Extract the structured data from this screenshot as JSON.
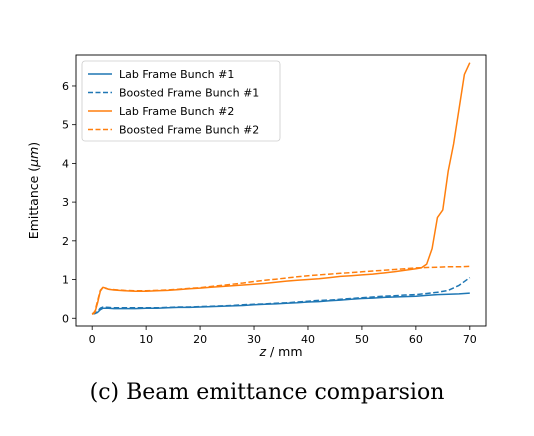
{
  "caption": "(c) Beam emittance comparsion",
  "chart_data": {
    "type": "line",
    "title": "",
    "xlabel_italic": "z",
    "xlabel_rest": " / mm",
    "ylabel_pre": "Emittance (",
    "ylabel_italic": "μm",
    "ylabel_post": ")",
    "xlim": [
      -3,
      73
    ],
    "ylim": [
      -0.2,
      6.8
    ],
    "xticks": [
      0,
      10,
      20,
      30,
      40,
      50,
      60,
      70
    ],
    "yticks": [
      0,
      1,
      2,
      3,
      4,
      5,
      6
    ],
    "legend_position": "top-left",
    "series": [
      {
        "name": "Lab Frame Bunch #1",
        "color": "#1f77b4",
        "style": "solid",
        "x": [
          0,
          0.5,
          1,
          1.5,
          2,
          3,
          4,
          6,
          8,
          10,
          12,
          14,
          16,
          18,
          20,
          22,
          24,
          26,
          28,
          30,
          32,
          34,
          36,
          38,
          40,
          42,
          44,
          46,
          48,
          50,
          52,
          54,
          56,
          58,
          60,
          62,
          64,
          66,
          68,
          70
        ],
        "y": [
          0.12,
          0.12,
          0.15,
          0.22,
          0.26,
          0.26,
          0.25,
          0.25,
          0.25,
          0.26,
          0.26,
          0.27,
          0.28,
          0.28,
          0.29,
          0.3,
          0.31,
          0.32,
          0.33,
          0.35,
          0.36,
          0.37,
          0.39,
          0.4,
          0.42,
          0.43,
          0.45,
          0.47,
          0.49,
          0.51,
          0.52,
          0.54,
          0.55,
          0.56,
          0.57,
          0.59,
          0.61,
          0.62,
          0.63,
          0.65
        ]
      },
      {
        "name": "Boosted Frame Bunch #1",
        "color": "#1f77b4",
        "style": "dashed",
        "x": [
          0,
          0.5,
          1,
          1.5,
          2,
          3,
          4,
          6,
          8,
          10,
          12,
          14,
          16,
          18,
          20,
          22,
          24,
          26,
          28,
          30,
          32,
          34,
          36,
          38,
          40,
          42,
          44,
          46,
          48,
          50,
          52,
          54,
          56,
          58,
          60,
          62,
          64,
          66,
          68,
          70
        ],
        "y": [
          0.12,
          0.12,
          0.18,
          0.26,
          0.29,
          0.28,
          0.27,
          0.27,
          0.27,
          0.27,
          0.27,
          0.28,
          0.29,
          0.29,
          0.3,
          0.31,
          0.32,
          0.33,
          0.35,
          0.36,
          0.37,
          0.39,
          0.4,
          0.42,
          0.44,
          0.46,
          0.47,
          0.49,
          0.51,
          0.53,
          0.55,
          0.57,
          0.58,
          0.6,
          0.61,
          0.64,
          0.67,
          0.72,
          0.85,
          1.05
        ]
      },
      {
        "name": "Lab Frame Bunch #2",
        "color": "#ff7f0e",
        "style": "solid",
        "x": [
          0,
          0.5,
          1,
          1.5,
          2,
          2.5,
          3,
          4,
          5,
          6,
          8,
          10,
          12,
          14,
          16,
          18,
          20,
          22,
          24,
          26,
          28,
          30,
          32,
          34,
          36,
          38,
          40,
          42,
          44,
          46,
          48,
          50,
          52,
          54,
          56,
          58,
          60,
          61,
          62,
          63,
          64,
          65,
          66,
          67,
          68,
          69,
          70
        ],
        "y": [
          0.1,
          0.15,
          0.4,
          0.7,
          0.8,
          0.78,
          0.75,
          0.73,
          0.72,
          0.71,
          0.7,
          0.7,
          0.71,
          0.72,
          0.74,
          0.76,
          0.78,
          0.8,
          0.82,
          0.84,
          0.86,
          0.88,
          0.9,
          0.93,
          0.96,
          0.98,
          1.0,
          1.02,
          1.05,
          1.08,
          1.1,
          1.12,
          1.14,
          1.17,
          1.2,
          1.24,
          1.28,
          1.3,
          1.4,
          1.8,
          2.6,
          2.8,
          3.8,
          4.5,
          5.4,
          6.3,
          6.6
        ]
      },
      {
        "name": "Boosted Frame Bunch #2",
        "color": "#ff7f0e",
        "style": "dashed",
        "x": [
          0,
          0.5,
          1,
          1.5,
          2,
          2.5,
          3,
          4,
          5,
          6,
          8,
          10,
          12,
          14,
          16,
          18,
          20,
          22,
          24,
          26,
          28,
          30,
          32,
          34,
          36,
          38,
          40,
          42,
          44,
          46,
          48,
          50,
          52,
          54,
          56,
          58,
          60,
          62,
          64,
          66,
          68,
          70
        ],
        "y": [
          0.1,
          0.18,
          0.45,
          0.72,
          0.8,
          0.77,
          0.75,
          0.74,
          0.73,
          0.72,
          0.71,
          0.71,
          0.72,
          0.73,
          0.75,
          0.77,
          0.79,
          0.82,
          0.85,
          0.88,
          0.91,
          0.95,
          0.98,
          1.01,
          1.04,
          1.07,
          1.1,
          1.12,
          1.14,
          1.16,
          1.18,
          1.2,
          1.22,
          1.24,
          1.26,
          1.28,
          1.3,
          1.31,
          1.32,
          1.33,
          1.33,
          1.34
        ]
      }
    ]
  }
}
